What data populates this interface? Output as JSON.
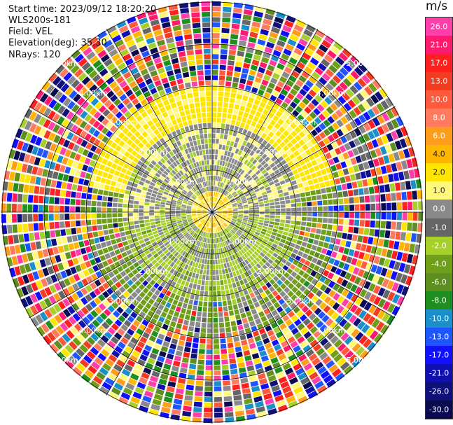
{
  "header": {
    "start_time": "Start time: 2023/09/12 18:20:20",
    "station": "WLS200s-181",
    "field": "Field: VEL",
    "elevation": "Elevation(deg): 35.30",
    "nrays": "NRays: 120"
  },
  "chart_data": {
    "type": "polar-ppi",
    "unit": "m/s",
    "n_rays": 120,
    "range_ring_labels": [
      "1.00km",
      "2.00km",
      "3.00km",
      "4.00km",
      "5.00km"
    ],
    "colorbar_ticks": [
      "26.0",
      "21.0",
      "17.0",
      "13.0",
      "10.0",
      "8.0",
      "6.0",
      "4.0",
      "2.0",
      "1.0",
      "0.0",
      "-1.0",
      "-2.0",
      "-4.0",
      "-6.0",
      "-8.0",
      "-10.0",
      "-13.0",
      "-17.0",
      "-21.0",
      "-26.0",
      "-30.0"
    ],
    "colorbar_colors": [
      "#ff3fa9",
      "#ff1a6e",
      "#ff1f1f",
      "#f23d22",
      "#ff5a3c",
      "#ff7a5f",
      "#ff9c1c",
      "#ffb600",
      "#ffe600",
      "#fff87a",
      "#8a8a8a",
      "#666666",
      "#a6cf2a",
      "#6f9e19",
      "#5c8f1f",
      "#1f8f1f",
      "#1a8fc9",
      "#1f55ff",
      "#1010ff",
      "#1010b0",
      "#10107a",
      "#0a0a50"
    ]
  }
}
